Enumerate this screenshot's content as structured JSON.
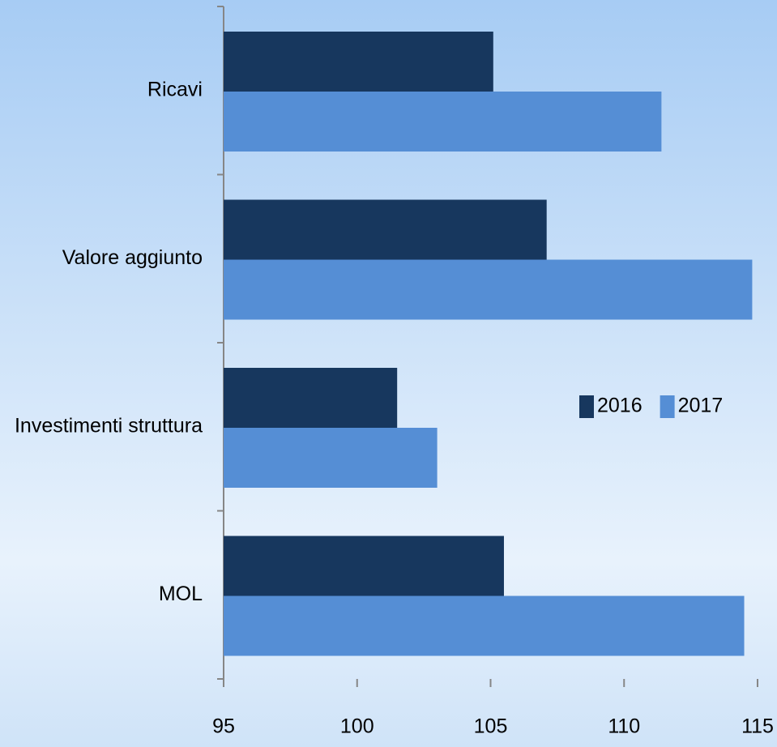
{
  "chart_data": {
    "type": "hbar",
    "categories": [
      "Ricavi",
      "Valore aggiunto",
      "Investimenti struttura",
      "MOL"
    ],
    "series": [
      {
        "name": "2016",
        "color": "#17375e",
        "values": [
          105.1,
          107.1,
          101.5,
          105.5
        ]
      },
      {
        "name": "2017",
        "color": "#558ed5",
        "values": [
          111.4,
          114.8,
          103.0,
          114.5
        ]
      }
    ],
    "xlim": [
      95,
      115
    ],
    "xticks": [
      95,
      100,
      105,
      110,
      115
    ],
    "grid": false
  }
}
